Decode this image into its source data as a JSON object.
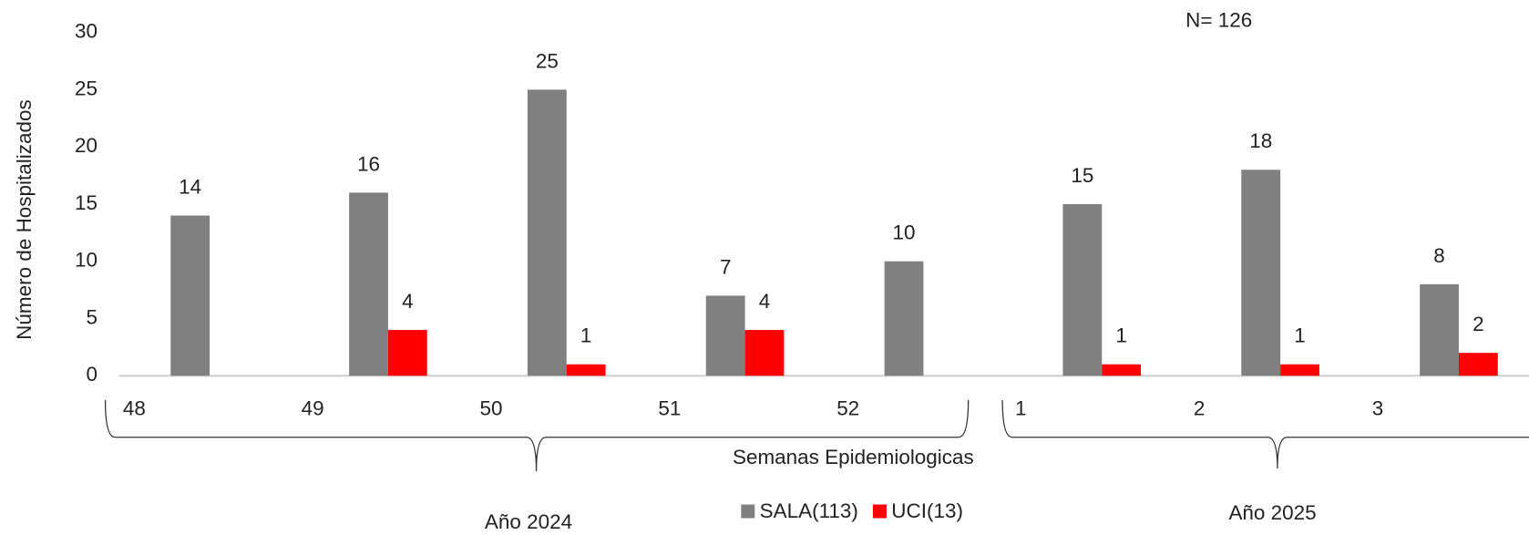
{
  "chart_data": {
    "type": "bar",
    "annotation": "N= 126",
    "y_label": "Número de Hospitalizados",
    "x_label": "Semanas Epidemiologicas",
    "groups": [
      "Año 2024",
      "Año 2025"
    ],
    "categories": [
      "48",
      "49",
      "50",
      "51",
      "52",
      "1",
      "2",
      "3"
    ],
    "series": [
      {
        "name": "SALA(113)",
        "color": "#808080",
        "values": [
          14,
          16,
          25,
          7,
          10,
          15,
          18,
          8
        ]
      },
      {
        "name": "UCI(13)",
        "color": "#ff0000",
        "values": [
          null,
          4,
          1,
          4,
          null,
          1,
          1,
          2
        ]
      }
    ],
    "ylim": [
      0,
      30
    ],
    "yticks": [
      0,
      5,
      10,
      15,
      20,
      25,
      30
    ],
    "grid": false
  }
}
